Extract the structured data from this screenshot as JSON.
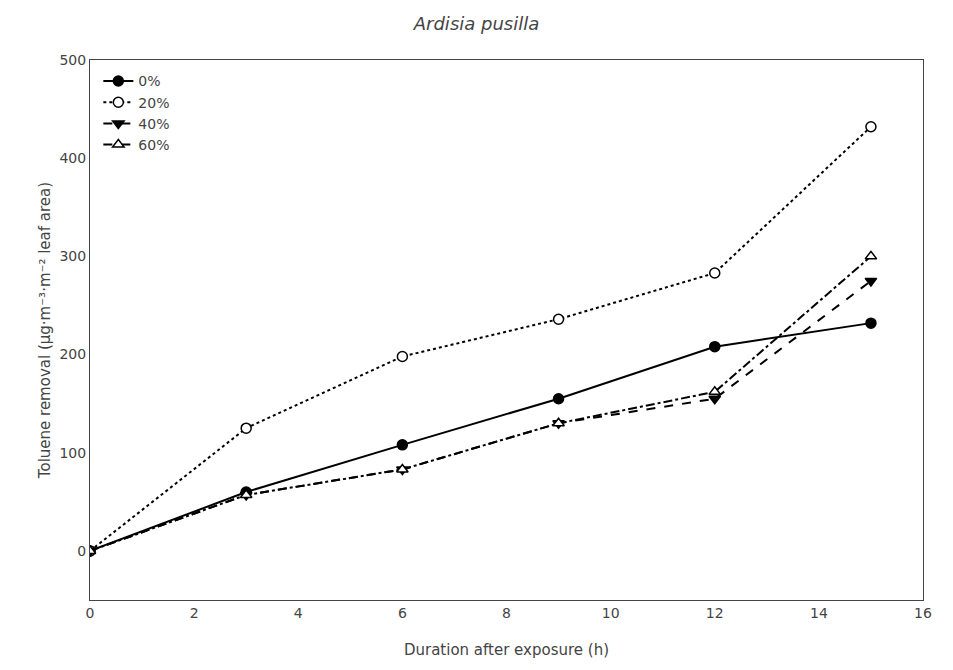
{
  "chart_data": {
    "type": "line",
    "title": "Ardisia pusilla",
    "x_label": "Duration after exposure (h)",
    "y_label": "Toluene removal (μg·m⁻³·m⁻² leaf area)",
    "x": [
      0,
      3,
      6,
      9,
      12,
      15
    ],
    "series": [
      {
        "name": "0%",
        "color": "#000000",
        "marker": "circle",
        "line_style": "solid",
        "values": [
          0,
          60,
          108,
          155,
          208,
          232
        ]
      },
      {
        "name": "20%",
        "color": "#000000",
        "marker": "circle-open",
        "line_style": "dot",
        "values": [
          0,
          125,
          198,
          236,
          283,
          432
        ]
      },
      {
        "name": "40%",
        "color": "#000000",
        "marker": "triangle-down",
        "line_style": "dash",
        "values": [
          0,
          57,
          83,
          130,
          155,
          275
        ]
      },
      {
        "name": "60%",
        "color": "#000000",
        "marker": "triangle-up-open",
        "line_style": "dashdot",
        "values": [
          0,
          57,
          83,
          130,
          162,
          300
        ]
      }
    ],
    "xlim": [
      0,
      16
    ],
    "ylim": [
      -50,
      500
    ],
    "xticks": [
      0,
      2,
      4,
      6,
      8,
      10,
      12,
      14,
      16
    ],
    "yticks": [
      0,
      100,
      200,
      300,
      400,
      500
    ],
    "grid": false,
    "legend": "upper left"
  }
}
